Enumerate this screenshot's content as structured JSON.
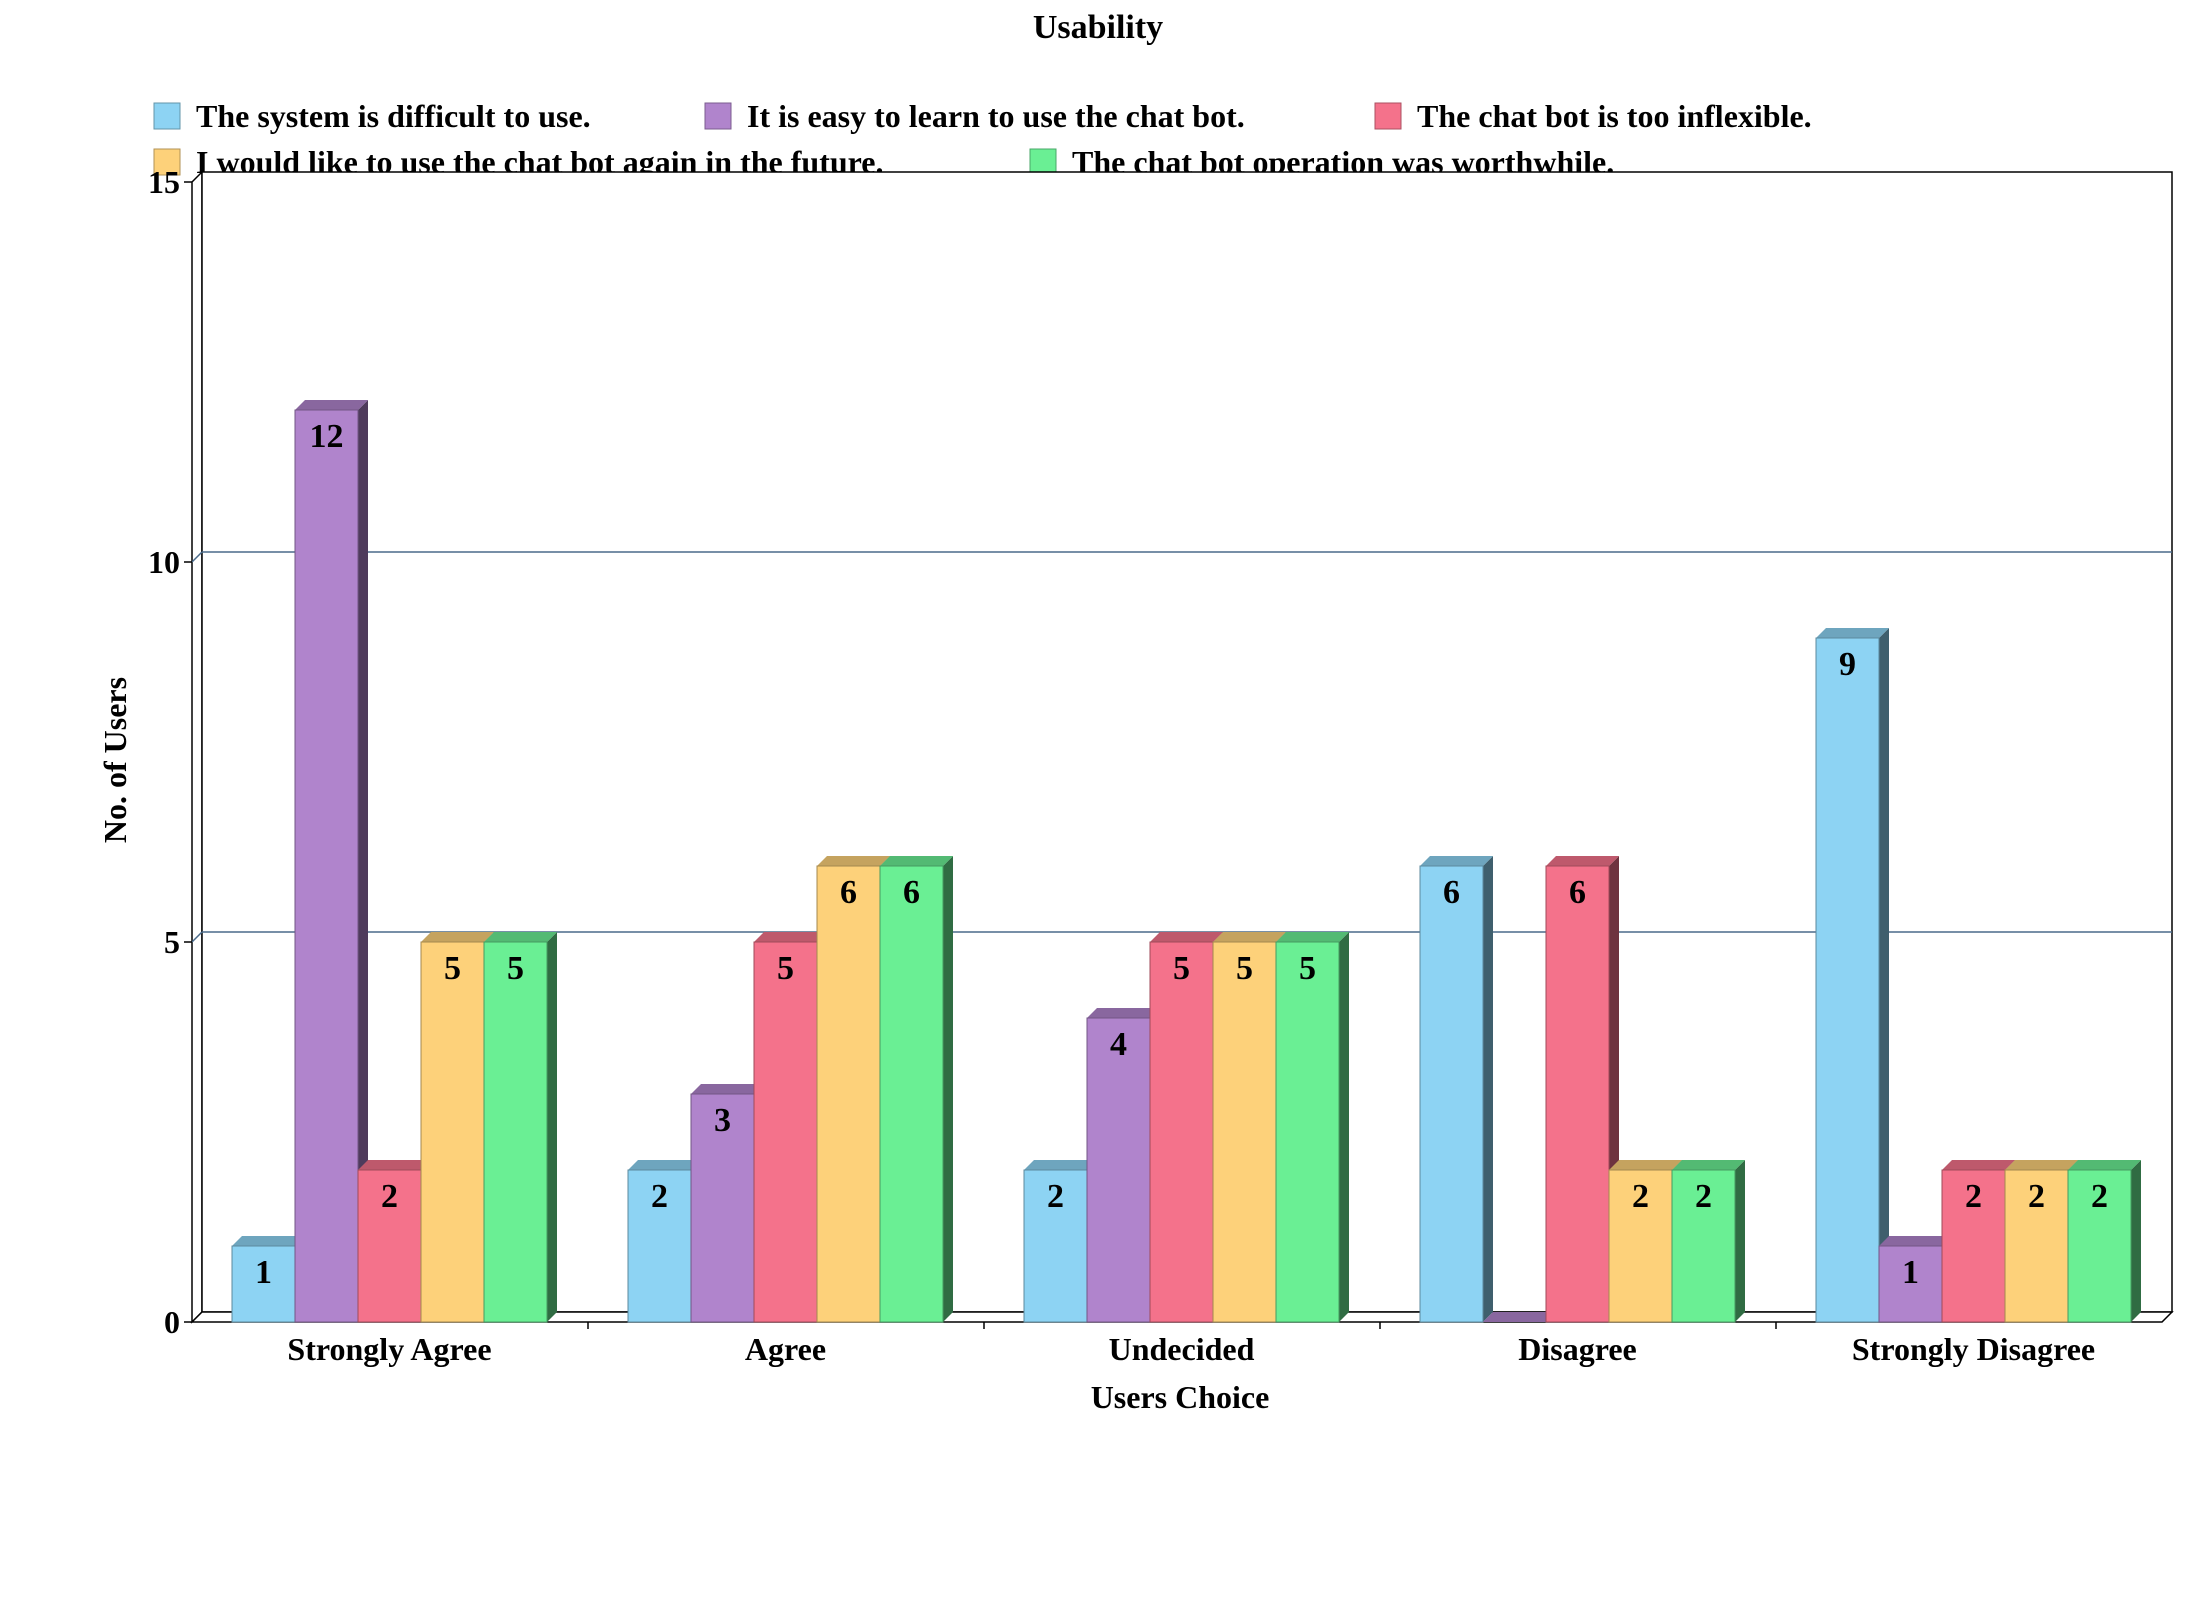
{
  "chart_data": {
    "type": "bar",
    "title": "Usability",
    "xlabel": "Users Choice",
    "ylabel": "No. of  Users",
    "categories": [
      "Strongly Agree",
      "Agree",
      "Undecided",
      "Disagree",
      "Strongly Disagree"
    ],
    "ylim": [
      0,
      15
    ],
    "yticks": [
      0,
      5,
      10,
      15
    ],
    "grid": true,
    "legend_position": "top",
    "series": [
      {
        "name": "The system is difficult to use.",
        "color": "#8dd3f3",
        "values": [
          1,
          2,
          2,
          6,
          9
        ]
      },
      {
        "name": "It is easy to learn to use the chat bot.",
        "color": "#b084cc",
        "values": [
          12,
          3,
          4,
          0,
          1
        ]
      },
      {
        "name": "The chat bot is too inflexible.",
        "color": "#f4728b",
        "values": [
          2,
          5,
          5,
          6,
          2
        ]
      },
      {
        "name": "I would like to use the chat bot again in the future.",
        "color": "#fdd17a",
        "values": [
          5,
          6,
          5,
          2,
          2
        ]
      },
      {
        "name": "The chat bot operation was worthwhile.",
        "color": "#6aef94",
        "values": [
          5,
          6,
          5,
          2,
          2
        ]
      }
    ]
  }
}
